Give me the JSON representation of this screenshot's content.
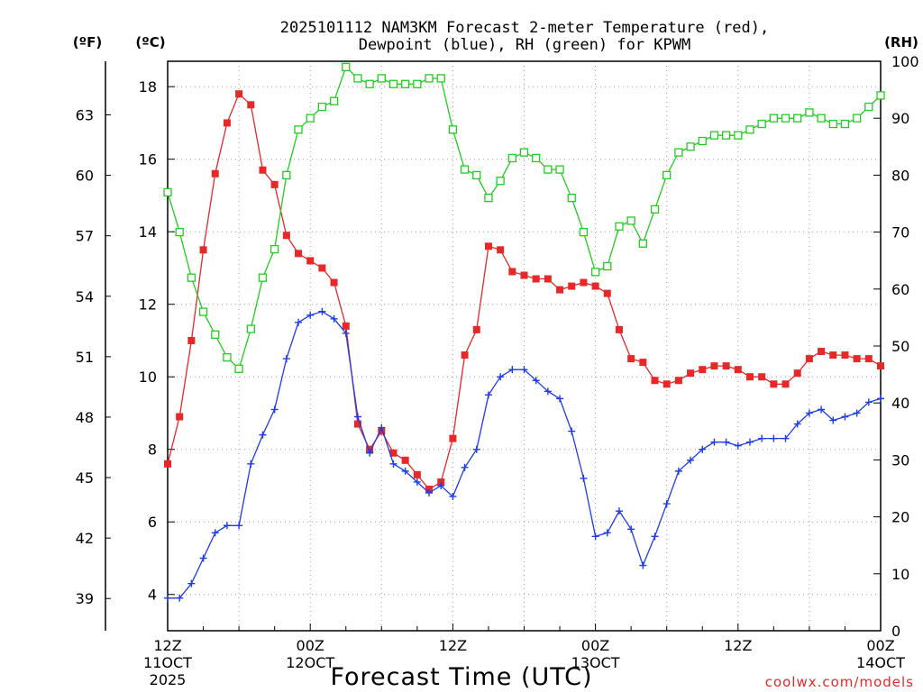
{
  "title_line1": "2025101112 NAM3KM Forecast 2-meter Temperature (red),",
  "title_line2": "Dewpoint (blue), RH (green) for KPWM",
  "watermark": "coolwx.com/models",
  "chart_data": {
    "type": "line",
    "title": "2025101112 NAM3KM Forecast 2-meter Temperature (red), Dewpoint (blue), RH (green) for KPWM",
    "xlabel": "Forecast Time (UTC)",
    "x_hours": [
      0,
      1,
      2,
      3,
      4,
      5,
      6,
      7,
      8,
      9,
      10,
      11,
      12,
      13,
      14,
      15,
      16,
      17,
      18,
      19,
      20,
      21,
      22,
      23,
      24,
      25,
      26,
      27,
      28,
      29,
      30,
      31,
      32,
      33,
      34,
      35,
      36,
      37,
      38,
      39,
      40,
      41,
      42,
      43,
      44,
      45,
      46,
      47,
      48,
      49,
      50,
      51,
      52,
      53,
      54,
      55,
      56,
      57,
      58,
      59,
      60
    ],
    "x_ticks": [
      {
        "hour": 0,
        "line1": "12Z",
        "line2": "11OCT",
        "line3": "2025"
      },
      {
        "hour": 12,
        "line1": "00Z",
        "line2": "12OCT",
        "line3": ""
      },
      {
        "hour": 24,
        "line1": "12Z",
        "line2": "",
        "line3": ""
      },
      {
        "hour": 36,
        "line1": "00Z",
        "line2": "13OCT",
        "line3": ""
      },
      {
        "hour": 48,
        "line1": "12Z",
        "line2": "",
        "line3": ""
      },
      {
        "hour": 60,
        "line1": "00Z",
        "line2": "14OCT",
        "line3": ""
      }
    ],
    "y_left_c": {
      "label": "(ºC)",
      "ylim": [
        3.0,
        18.7
      ],
      "ticks": [
        4,
        6,
        8,
        10,
        12,
        14,
        16,
        18
      ]
    },
    "y_left_f": {
      "label": "(ºF)",
      "ticks": [
        39,
        42,
        45,
        48,
        51,
        54,
        57,
        60,
        63
      ]
    },
    "y_right_rh": {
      "label": "(RH)",
      "ylim": [
        0,
        100
      ],
      "ticks": [
        0,
        10,
        20,
        30,
        40,
        50,
        60,
        70,
        80,
        90,
        100
      ]
    },
    "series": [
      {
        "name": "Temperature",
        "unit": "C",
        "axis": "left",
        "color": "#e62828",
        "marker": "filled-square",
        "values": [
          7.6,
          8.9,
          11.0,
          13.5,
          15.6,
          17.0,
          17.8,
          17.5,
          15.7,
          15.3,
          13.9,
          13.4,
          13.2,
          13.0,
          12.6,
          11.4,
          8.7,
          8.0,
          8.5,
          7.9,
          7.7,
          7.3,
          6.9,
          7.1,
          8.3,
          10.6,
          11.3,
          13.6,
          13.5,
          12.9,
          12.8,
          12.7,
          12.7,
          12.4,
          12.5,
          12.6,
          12.5,
          12.3,
          11.3,
          10.5,
          10.4,
          9.9,
          9.8,
          9.9,
          10.1,
          10.2,
          10.3,
          10.3,
          10.2,
          10.0,
          10.0,
          9.8,
          9.8,
          10.1,
          10.5,
          10.7,
          10.6,
          10.6,
          10.5,
          10.5,
          10.3
        ]
      },
      {
        "name": "Dewpoint",
        "unit": "C",
        "axis": "left",
        "color": "#1e3ce6",
        "marker": "plus",
        "values": [
          3.9,
          3.9,
          4.3,
          5.0,
          5.7,
          5.9,
          5.9,
          7.6,
          8.4,
          9.1,
          10.5,
          11.5,
          11.7,
          11.8,
          11.6,
          11.2,
          8.9,
          7.9,
          8.6,
          7.6,
          7.4,
          7.1,
          6.8,
          7.0,
          6.7,
          7.5,
          8.0,
          9.5,
          10.0,
          10.2,
          10.2,
          9.9,
          9.6,
          9.4,
          8.5,
          7.2,
          5.6,
          5.7,
          6.3,
          5.8,
          4.8,
          5.6,
          6.5,
          7.4,
          7.7,
          8.0,
          8.2,
          8.2,
          8.1,
          8.2,
          8.3,
          8.3,
          8.3,
          8.7,
          9.0,
          9.1,
          8.8,
          8.9,
          9.0,
          9.3,
          9.4
        ]
      },
      {
        "name": "RH",
        "unit": "%",
        "axis": "right",
        "color": "#22cc22",
        "marker": "open-square",
        "values": [
          77,
          70,
          62,
          56,
          52,
          48,
          46,
          53,
          62,
          67,
          80,
          88,
          90,
          92,
          93,
          99,
          97,
          96,
          97,
          96,
          96,
          96,
          97,
          97,
          88,
          81,
          80,
          76,
          79,
          83,
          84,
          83,
          81,
          81,
          76,
          70,
          63,
          64,
          71,
          72,
          68,
          74,
          80,
          84,
          85,
          86,
          87,
          87,
          87,
          88,
          89,
          90,
          90,
          90,
          91,
          90,
          89,
          89,
          90,
          92,
          94
        ]
      }
    ],
    "grid": true
  }
}
